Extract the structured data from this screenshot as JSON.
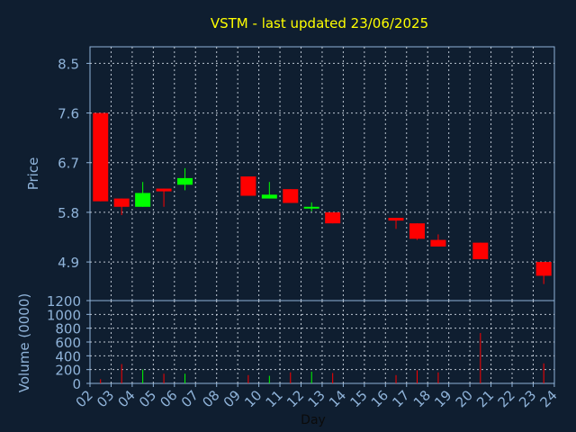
{
  "chart_data": {
    "type": "candlestick",
    "title": "VSTM - last updated 23/06/2025",
    "xlabel": "Day",
    "x_ticks": [
      "02",
      "03",
      "04",
      "05",
      "06",
      "07",
      "08",
      "09",
      "10",
      "11",
      "12",
      "13",
      "14",
      "15",
      "16",
      "17",
      "18",
      "19",
      "20",
      "21",
      "22",
      "23",
      "24"
    ],
    "price_panel": {
      "ylabel": "Price",
      "ylim": [
        4.2,
        8.8
      ],
      "y_ticks": [
        "8.5",
        "7.6",
        "6.7",
        "5.8",
        "4.9"
      ],
      "grid": true
    },
    "volume_panel": {
      "ylabel": "Volume (0000)",
      "ylim": [
        0,
        1200
      ],
      "y_ticks": [
        "1200",
        "1000",
        "800",
        "600",
        "400",
        "200",
        "0"
      ],
      "grid": true
    },
    "candles": [
      {
        "day": "02",
        "open": 7.6,
        "high": 7.6,
        "low": 6.0,
        "close": 6.0,
        "volume": 60
      },
      {
        "day": "03",
        "open": 6.05,
        "high": 6.05,
        "low": 5.75,
        "close": 5.9,
        "volume": 280
      },
      {
        "day": "04",
        "open": 5.9,
        "high": 6.35,
        "low": 5.9,
        "close": 6.15,
        "volume": 200
      },
      {
        "day": "05",
        "open": 6.23,
        "high": 6.23,
        "low": 5.9,
        "close": 6.18,
        "volume": 140
      },
      {
        "day": "06",
        "open": 6.3,
        "high": 6.6,
        "low": 6.2,
        "close": 6.42,
        "volume": 140
      },
      {
        "day": "09",
        "open": 6.45,
        "high": 6.45,
        "low": 6.1,
        "close": 6.1,
        "volume": 120
      },
      {
        "day": "10",
        "open": 6.05,
        "high": 6.35,
        "low": 6.05,
        "close": 6.12,
        "volume": 110
      },
      {
        "day": "11",
        "open": 6.22,
        "high": 6.22,
        "low": 5.97,
        "close": 5.97,
        "volume": 160
      },
      {
        "day": "12",
        "open": 5.88,
        "high": 5.98,
        "low": 5.82,
        "close": 5.9,
        "volume": 170
      },
      {
        "day": "13",
        "open": 5.8,
        "high": 5.8,
        "low": 5.6,
        "close": 5.6,
        "volume": 150
      },
      {
        "day": "16",
        "open": 5.7,
        "high": 5.7,
        "low": 5.5,
        "close": 5.65,
        "volume": 120
      },
      {
        "day": "17",
        "open": 5.6,
        "high": 5.6,
        "low": 5.3,
        "close": 5.32,
        "volume": 190
      },
      {
        "day": "18",
        "open": 5.3,
        "high": 5.4,
        "low": 5.18,
        "close": 5.18,
        "volume": 160
      },
      {
        "day": "20",
        "open": 5.25,
        "high": 5.25,
        "low": 4.95,
        "close": 4.95,
        "volume": 730
      },
      {
        "day": "23",
        "open": 4.9,
        "high": 4.9,
        "low": 4.5,
        "close": 4.65,
        "volume": 290
      }
    ],
    "colors": {
      "background": "#0f1e30",
      "up": "#00ff00",
      "down": "#ff0000",
      "title": "#ffff00",
      "axis_text": "#8fb3d9",
      "frame": "#8fb3d9",
      "grid": "#cfd8e3"
    }
  }
}
